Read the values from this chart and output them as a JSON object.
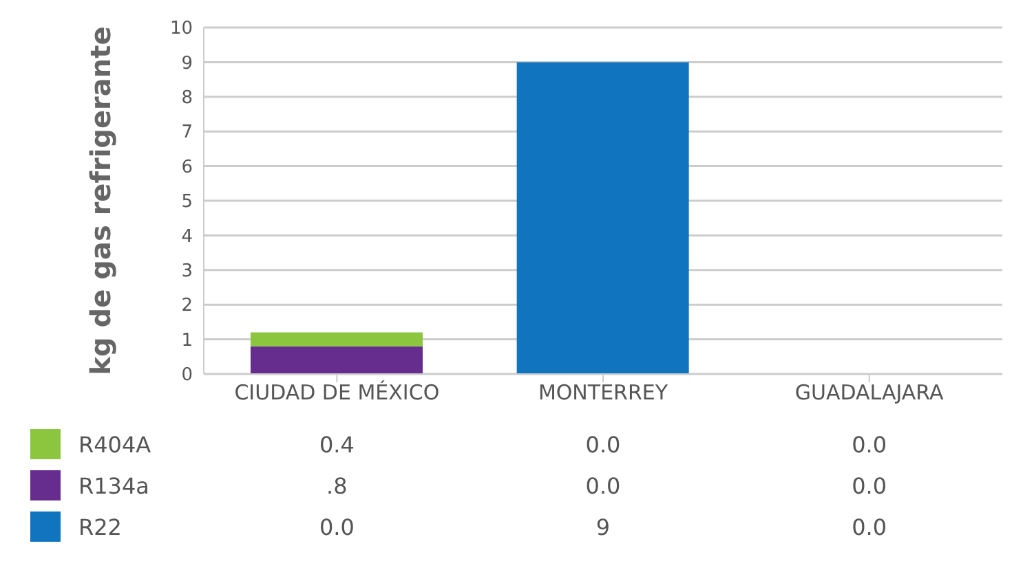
{
  "chart_data": {
    "type": "bar",
    "stacked": true,
    "ylabel": "kg de gas refrigerante",
    "categories": [
      "CIUDAD DE MÉXICO",
      "MONTERREY",
      "GUADALAJARA"
    ],
    "series": [
      {
        "name": "R22",
        "color": "#1174bf",
        "values": [
          0.0,
          9,
          0.0
        ],
        "value_labels": [
          "0.0",
          "9",
          "0.0"
        ]
      },
      {
        "name": "R134a",
        "color": "#662d8f",
        "values": [
          0.8,
          0.0,
          0.0
        ],
        "value_labels": [
          ".8",
          "0.0",
          "0.0"
        ]
      },
      {
        "name": "R404A",
        "color": "#8cc63f",
        "values": [
          0.4,
          0.0,
          0.0
        ],
        "value_labels": [
          "0.4",
          "0.0",
          "0.0"
        ]
      }
    ],
    "ylim": [
      0,
      10
    ],
    "yticks": [
      0,
      1,
      2,
      3,
      4,
      5,
      6,
      7,
      8,
      9,
      10
    ],
    "grid": "y",
    "legend": "bottom left"
  }
}
